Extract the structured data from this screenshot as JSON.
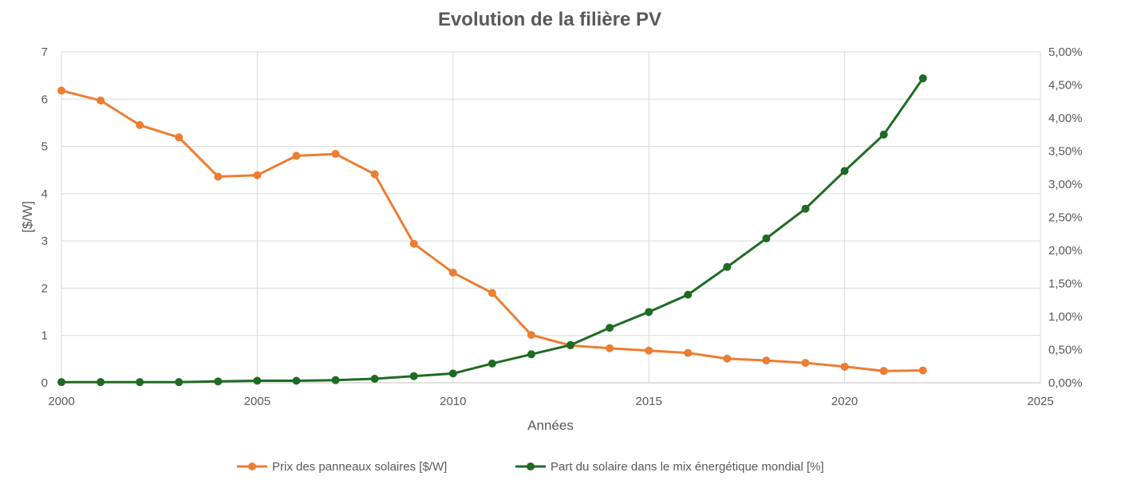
{
  "chart_data": {
    "type": "line",
    "title": "Evolution de la filière PV",
    "xlabel": "Années",
    "ylabel": "[$/W]",
    "y2label": "",
    "xlim": [
      2000,
      2025
    ],
    "ylim": [
      0,
      7
    ],
    "y2lim": [
      0,
      0.05
    ],
    "x_ticks": [
      "2000",
      "2005",
      "2010",
      "2015",
      "2020",
      "2025"
    ],
    "y_ticks": [
      "0",
      "1",
      "2",
      "3",
      "4",
      "5",
      "6",
      "7"
    ],
    "y2_ticks": [
      "0,00%",
      "0,50%",
      "1,00%",
      "1,50%",
      "2,00%",
      "2,50%",
      "3,00%",
      "3,50%",
      "4,00%",
      "4,50%",
      "5,00%"
    ],
    "grid": true,
    "legend_position": "bottom",
    "series": [
      {
        "name": "Prix des panneaux solaires [$/W]",
        "axis": "left",
        "color": "#ed7d31",
        "x": [
          2000,
          2001,
          2002,
          2003,
          2004,
          2005,
          2006,
          2007,
          2008,
          2009,
          2010,
          2011,
          2012,
          2013,
          2014,
          2015,
          2016,
          2017,
          2018,
          2019,
          2020,
          2021,
          2022
        ],
        "values": [
          6.18,
          5.97,
          5.45,
          5.19,
          4.36,
          4.39,
          4.8,
          4.84,
          4.41,
          2.94,
          2.33,
          1.9,
          1.01,
          0.79,
          0.73,
          0.68,
          0.63,
          0.51,
          0.47,
          0.42,
          0.34,
          0.25,
          0.26
        ]
      },
      {
        "name": "Part du solaire dans le mix énergétique mondial [%]",
        "axis": "right",
        "color": "#1e6b22",
        "x": [
          2000,
          2001,
          2002,
          2003,
          2004,
          2005,
          2006,
          2007,
          2008,
          2009,
          2010,
          2011,
          2012,
          2013,
          2014,
          2015,
          2016,
          2017,
          2018,
          2019,
          2020,
          2021,
          2022
        ],
        "values": [
          0.0001,
          0.0001,
          0.0001,
          0.0001,
          0.0002,
          0.0003,
          0.0003,
          0.0004,
          0.0006,
          0.001,
          0.0014,
          0.0029,
          0.0043,
          0.0057,
          0.0083,
          0.0107,
          0.0133,
          0.0175,
          0.0218,
          0.0263,
          0.032,
          0.0375,
          0.046
        ]
      }
    ]
  }
}
